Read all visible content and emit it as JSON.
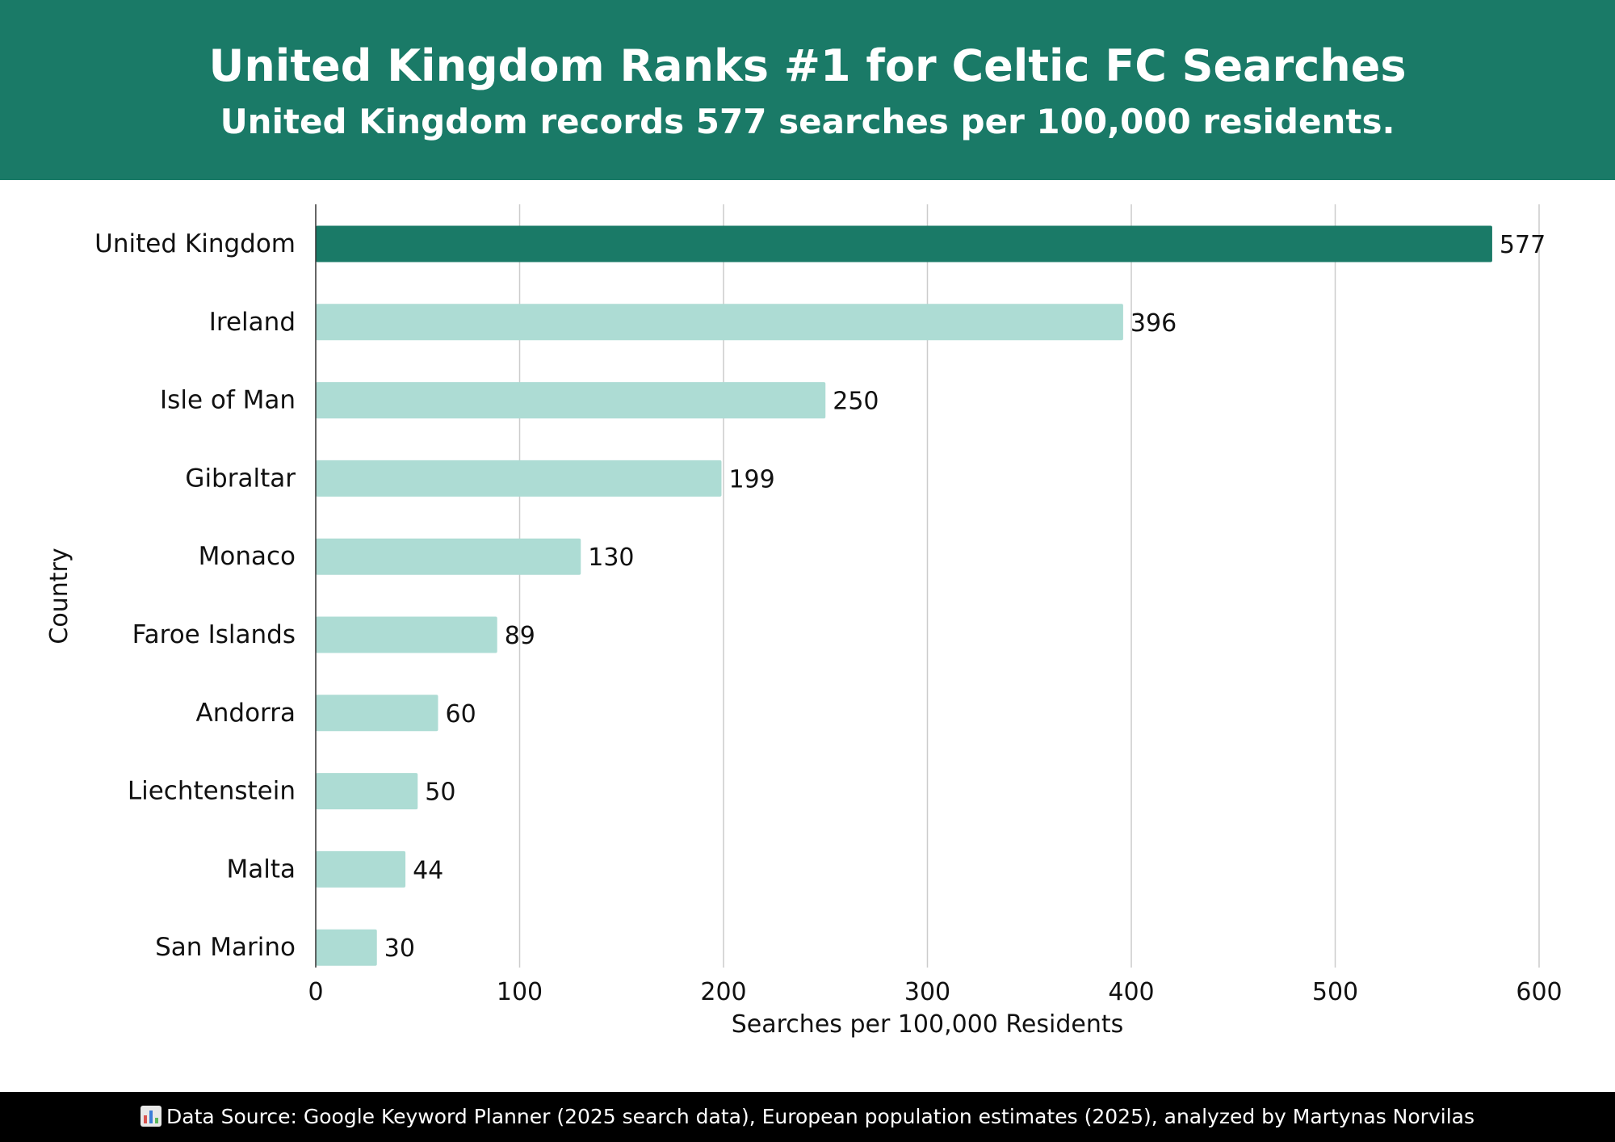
{
  "header": {
    "title": "United Kingdom Ranks #1 for Celtic FC Searches",
    "subtitle": "United Kingdom records 577 searches per 100,000 residents."
  },
  "footer": {
    "icon": "bar-chart-icon",
    "text": "Data Source: Google Keyword Planner (2025 search data), European population estimates (2025), analyzed by Martynas Norvilas"
  },
  "colors": {
    "header_bg": "#1a7a67",
    "highlight_bar": "#1a7a67",
    "bar": "#addcd4",
    "grid": "#cccccc",
    "footer_bg": "#000000"
  },
  "chart_data": {
    "type": "bar",
    "orientation": "horizontal",
    "categories": [
      "United Kingdom",
      "Ireland",
      "Isle of Man",
      "Gibraltar",
      "Monaco",
      "Faroe Islands",
      "Andorra",
      "Liechtenstein",
      "Malta",
      "San Marino"
    ],
    "values": [
      577,
      396,
      250,
      199,
      130,
      89,
      60,
      50,
      44,
      30
    ],
    "value_labels": [
      "577",
      "396",
      "250",
      "199",
      "130",
      "89",
      "60",
      "50",
      "44",
      "30"
    ],
    "highlight": "United Kingdom",
    "xlabel": "Searches per 100,000 Residents",
    "ylabel": "Country",
    "xlim": [
      0,
      600
    ],
    "xticks": [
      0,
      100,
      200,
      300,
      400,
      500,
      600
    ],
    "xtick_labels": [
      "0",
      "100",
      "200",
      "300",
      "400",
      "500",
      "600"
    ],
    "grid": "vertical"
  }
}
